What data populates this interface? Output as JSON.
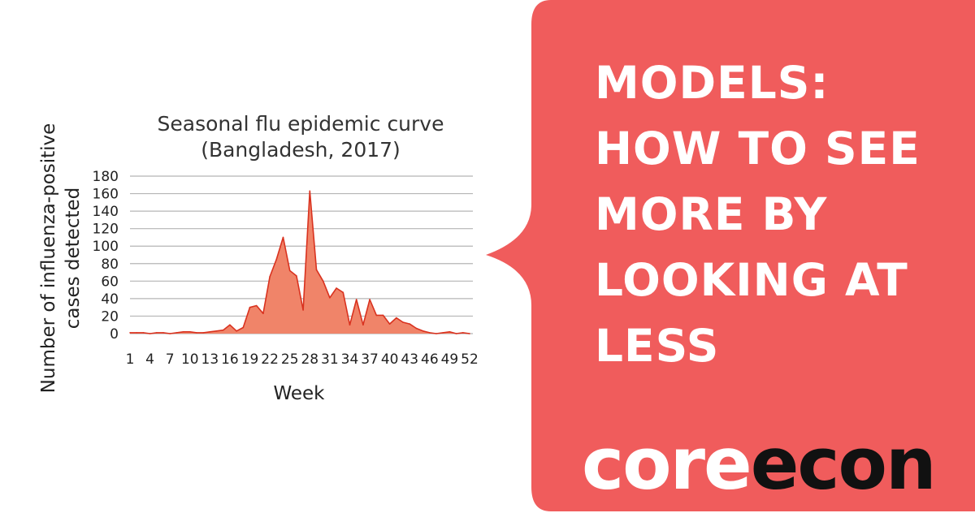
{
  "chart_data": {
    "type": "area",
    "title": [
      "Seasonal flu epidemic curve",
      "(Bangladesh, 2017)"
    ],
    "xlabel": "Week",
    "ylabel": [
      "Number of influenza-positive",
      "cases detected"
    ],
    "xlim": [
      1,
      52
    ],
    "ylim": [
      0,
      180
    ],
    "yticks": [
      0,
      20,
      40,
      60,
      80,
      100,
      120,
      140,
      160,
      180
    ],
    "xticks": [
      1,
      4,
      7,
      10,
      13,
      16,
      19,
      22,
      25,
      28,
      31,
      34,
      37,
      40,
      43,
      46,
      49,
      52
    ],
    "grid": true,
    "fill_color": "#f08469",
    "line_color": "#d9321f",
    "x": [
      1,
      2,
      3,
      4,
      5,
      6,
      7,
      8,
      9,
      10,
      11,
      12,
      13,
      14,
      15,
      16,
      17,
      18,
      19,
      20,
      21,
      22,
      23,
      24,
      25,
      26,
      27,
      28,
      29,
      30,
      31,
      32,
      33,
      34,
      35,
      36,
      37,
      38,
      39,
      40,
      41,
      42,
      43,
      44,
      45,
      46,
      47,
      48,
      49,
      50,
      51,
      52
    ],
    "values": [
      1,
      1,
      1,
      0,
      1,
      1,
      0,
      1,
      2,
      2,
      1,
      1,
      2,
      3,
      4,
      10,
      3,
      7,
      30,
      32,
      23,
      65,
      85,
      110,
      72,
      66,
      27,
      163,
      73,
      60,
      41,
      52,
      47,
      10,
      39,
      10,
      39,
      21,
      21,
      11,
      18,
      13,
      11,
      6,
      3,
      1,
      0,
      1,
      2,
      0,
      1,
      0
    ]
  },
  "headline": {
    "lines": [
      "MODELS:",
      "HOW TO SEE",
      "MORE BY",
      "LOOKING AT",
      "LESS"
    ]
  },
  "logo": {
    "part1": "core",
    "part2": "econ"
  },
  "colors": {
    "panel": "#f05c5c",
    "text_light": "#ffffff",
    "logo_dark": "#111111"
  }
}
